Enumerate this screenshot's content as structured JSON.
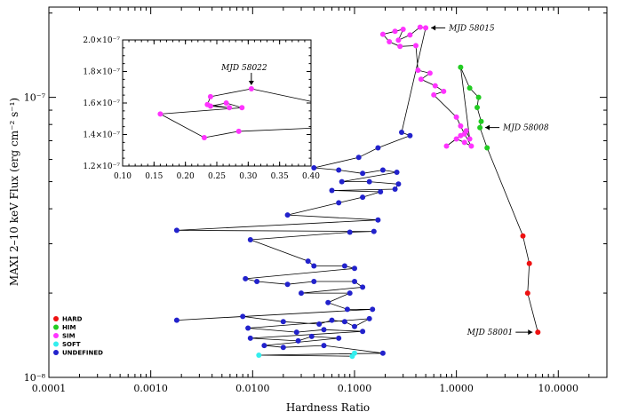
{
  "chart_data": {
    "type": "scatter",
    "xlabel": "Hardness Ratio",
    "ylabel": "MAXI 2–10 keV Flux (erg cm⁻² s⁻¹)",
    "x_scale": "log",
    "y_scale": "log",
    "xlim": [
      0.0001,
      30
    ],
    "ylim": [
      1e-08,
      2.1e-07
    ],
    "x_tick_labels": [
      "0.0001",
      "0.0010",
      "0.0100",
      "0.1000",
      "1.0000",
      "10.0000"
    ],
    "x_tick_values": [
      0.0001,
      0.001,
      0.01,
      0.1,
      1,
      10
    ],
    "y_tick_labels": [
      "10⁻⁸",
      "10⁻⁷"
    ],
    "y_tick_values": [
      1e-08,
      1e-07
    ],
    "legend_position": "bottom-left",
    "legend": [
      {
        "label": "HARD",
        "color": "#ee1111"
      },
      {
        "label": "HIM",
        "color": "#22cc22"
      },
      {
        "label": "SIM",
        "color": "#ff33ff"
      },
      {
        "label": "SOFT",
        "color": "#33eeee"
      },
      {
        "label": "UNDEFINED",
        "color": "#2222cc"
      }
    ],
    "annotations": [
      {
        "text": "MJD 58001",
        "x": 6.3,
        "y": 1.45e-08
      },
      {
        "text": "MJD 58008",
        "x": 1.7,
        "y": 7.8e-08
      },
      {
        "text": "MJD 58015",
        "x": 0.5,
        "y": 1.77e-07
      }
    ],
    "series": [
      {
        "class": "HARD",
        "color": "#ee1111",
        "points": [
          [
            6.3,
            1.45e-08
          ],
          [
            5.0,
            2e-08
          ],
          [
            5.2,
            2.55e-08
          ],
          [
            4.5,
            3.2e-08
          ]
        ]
      },
      {
        "class": "HIM",
        "color": "#22cc22",
        "points": [
          [
            2.0,
            6.6e-08
          ],
          [
            1.7,
            7.8e-08
          ],
          [
            1.75,
            8.2e-08
          ],
          [
            1.6,
            9.2e-08
          ],
          [
            1.65,
            1e-07
          ],
          [
            1.35,
            1.08e-07
          ],
          [
            1.1,
            1.28e-07
          ]
        ]
      },
      {
        "class": "SIM",
        "color": "#ff33ff",
        "points": [
          [
            0.5,
            1.77e-07
          ],
          [
            0.44,
            1.78e-07
          ],
          [
            0.35,
            1.67e-07
          ],
          [
            0.27,
            1.6e-07
          ],
          [
            0.3,
            1.75e-07
          ],
          [
            0.25,
            1.72e-07
          ],
          [
            0.19,
            1.68e-07
          ],
          [
            0.22,
            1.58e-07
          ],
          [
            0.28,
            1.52e-07
          ],
          [
            0.4,
            1.53e-07
          ],
          [
            0.42,
            1.25e-07
          ],
          [
            0.55,
            1.22e-07
          ],
          [
            0.45,
            1.16e-07
          ],
          [
            0.62,
            1.1e-07
          ],
          [
            0.75,
            1.05e-07
          ],
          [
            0.6,
            1.02e-07
          ],
          [
            1.0,
            8.5e-08
          ],
          [
            1.1,
            7.9e-08
          ],
          [
            1.2,
            7.4e-08
          ],
          [
            1.4,
            6.7e-08
          ],
          [
            1.2,
            6.9e-08
          ],
          [
            1.0,
            7.1e-08
          ],
          [
            0.8,
            6.7e-08
          ],
          [
            1.1,
            7.3e-08
          ],
          [
            1.25,
            7.6e-08
          ],
          [
            1.35,
            7.1e-08
          ]
        ]
      },
      {
        "class": "SOFT",
        "color": "#33eeee",
        "points": [
          [
            0.0115,
            1.2e-08
          ],
          [
            0.095,
            1.19e-08
          ],
          [
            0.1,
            1.22e-08
          ]
        ]
      },
      {
        "class": "UNDEFINED",
        "color": "#2222cc",
        "points": [
          [
            0.29,
            7.5e-08
          ],
          [
            0.35,
            7.3e-08
          ],
          [
            0.17,
            6.6e-08
          ],
          [
            0.11,
            6.1e-08
          ],
          [
            0.04,
            5.6e-08
          ],
          [
            0.07,
            5.5e-08
          ],
          [
            0.12,
            5.35e-08
          ],
          [
            0.19,
            5.5e-08
          ],
          [
            0.26,
            5.4e-08
          ],
          [
            0.075,
            5e-08
          ],
          [
            0.14,
            5e-08
          ],
          [
            0.27,
            4.9e-08
          ],
          [
            0.25,
            4.7e-08
          ],
          [
            0.06,
            4.65e-08
          ],
          [
            0.18,
            4.6e-08
          ],
          [
            0.12,
            4.4e-08
          ],
          [
            0.07,
            4.2e-08
          ],
          [
            0.022,
            3.8e-08
          ],
          [
            0.17,
            3.65e-08
          ],
          [
            0.0018,
            3.35e-08
          ],
          [
            0.155,
            3.32e-08
          ],
          [
            0.09,
            3.3e-08
          ],
          [
            0.0095,
            3.1e-08
          ],
          [
            0.035,
            2.6e-08
          ],
          [
            0.04,
            2.5e-08
          ],
          [
            0.08,
            2.5e-08
          ],
          [
            0.1,
            2.45e-08
          ],
          [
            0.0085,
            2.25e-08
          ],
          [
            0.011,
            2.2e-08
          ],
          [
            0.022,
            2.15e-08
          ],
          [
            0.04,
            2.2e-08
          ],
          [
            0.1,
            2.2e-08
          ],
          [
            0.12,
            2.1e-08
          ],
          [
            0.03,
            2e-08
          ],
          [
            0.09,
            2e-08
          ],
          [
            0.055,
            1.85e-08
          ],
          [
            0.085,
            1.75e-08
          ],
          [
            0.15,
            1.75e-08
          ],
          [
            0.0018,
            1.6e-08
          ],
          [
            0.008,
            1.65e-08
          ],
          [
            0.02,
            1.58e-08
          ],
          [
            0.045,
            1.55e-08
          ],
          [
            0.06,
            1.6e-08
          ],
          [
            0.08,
            1.58e-08
          ],
          [
            0.1,
            1.52e-08
          ],
          [
            0.14,
            1.62e-08
          ],
          [
            0.009,
            1.5e-08
          ],
          [
            0.027,
            1.45e-08
          ],
          [
            0.05,
            1.48e-08
          ],
          [
            0.12,
            1.46e-08
          ],
          [
            0.0095,
            1.38e-08
          ],
          [
            0.028,
            1.35e-08
          ],
          [
            0.038,
            1.4e-08
          ],
          [
            0.07,
            1.38e-08
          ],
          [
            0.013,
            1.3e-08
          ],
          [
            0.02,
            1.28e-08
          ],
          [
            0.05,
            1.3e-08
          ],
          [
            0.19,
            1.22e-08
          ]
        ]
      }
    ],
    "inset": {
      "xlim": [
        0.1,
        0.4
      ],
      "ylim": [
        1.2e-07,
        2e-07
      ],
      "x_tick_labels": [
        "0.10",
        "0.15",
        "0.20",
        "0.25",
        "0.30",
        "0.35",
        "0.40"
      ],
      "x_tick_values": [
        0.1,
        0.15,
        0.2,
        0.25,
        0.3,
        0.35,
        0.4
      ],
      "y_tick_labels": [
        "1.2×10⁻⁷",
        "1.4×10⁻⁷",
        "1.6×10⁻⁷",
        "1.8×10⁻⁷",
        "2.0×10⁻⁷"
      ],
      "y_tick_values": [
        1.2e-07,
        1.4e-07,
        1.6e-07,
        1.8e-07,
        2e-07
      ],
      "annotation": {
        "text": "MJD 58022",
        "x": 0.305,
        "y": 1.69e-07
      },
      "points": [
        [
          0.305,
          1.69e-07
        ],
        [
          0.24,
          1.64e-07
        ],
        [
          0.235,
          1.59e-07
        ],
        [
          0.27,
          1.57e-07
        ],
        [
          0.24,
          1.58e-07
        ],
        [
          0.265,
          1.6e-07
        ],
        [
          0.29,
          1.57e-07
        ],
        [
          0.16,
          1.53e-07
        ],
        [
          0.23,
          1.38e-07
        ],
        [
          0.285,
          1.42e-07
        ]
      ]
    }
  }
}
